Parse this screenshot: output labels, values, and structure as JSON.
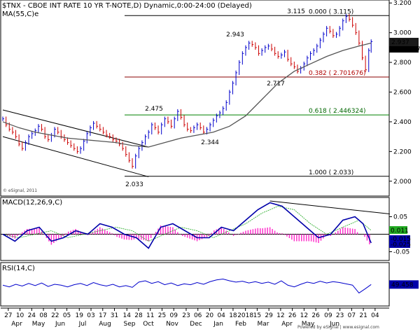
{
  "chart_data": [
    {
      "type": "line",
      "panel": "price",
      "title": "$TNX - CBOE INT RATE 10 YR T-NOTE,D) Dynamic,0:00-24:00 (Delayed)",
      "indicator_label": "MA(55,C)e",
      "watermark": "© eSignal, 2011",
      "ylim": [
        1.9,
        3.22
      ],
      "yticks": [
        2.0,
        2.2,
        2.4,
        2.6,
        2.8,
        3.0,
        3.2
      ],
      "ytick_labels": [
        "2.000",
        "2.200",
        "2.400",
        "2.600",
        "2.800",
        "3.000",
        "3.200"
      ],
      "current_value": "2.937",
      "current_value_behind": "2.906877",
      "series": [
        {
          "name": "price",
          "x": [
            0,
            4,
            8,
            12,
            16,
            20,
            24,
            28,
            32,
            36,
            40,
            44,
            48,
            52,
            56,
            60,
            64,
            68,
            72,
            76,
            80,
            84,
            88,
            92,
            96,
            100,
            104,
            108,
            112,
            116,
            120,
            124,
            128,
            132,
            136,
            140,
            144,
            148,
            152,
            156,
            160,
            164,
            168,
            172,
            176,
            180,
            184,
            188,
            192,
            196,
            200,
            204,
            208,
            212,
            216,
            220,
            224,
            228,
            232,
            236,
            240,
            244,
            248,
            252,
            256,
            260,
            264,
            268,
            272,
            276,
            280,
            284,
            288,
            292,
            296,
            300,
            304,
            308,
            312,
            316,
            320,
            324,
            328,
            332,
            336,
            340,
            344,
            348,
            352,
            356,
            360,
            364,
            368,
            372,
            376,
            380,
            384,
            388,
            392,
            396,
            400,
            404,
            408,
            412,
            416,
            420,
            424,
            428,
            432,
            436,
            440,
            444,
            448,
            452,
            455
          ],
          "values": [
            2.42,
            2.38,
            2.35,
            2.33,
            2.3,
            2.25,
            2.22,
            2.26,
            2.3,
            2.32,
            2.34,
            2.37,
            2.35,
            2.3,
            2.28,
            2.31,
            2.35,
            2.33,
            2.3,
            2.28,
            2.26,
            2.24,
            2.22,
            2.2,
            2.22,
            2.27,
            2.32,
            2.36,
            2.39,
            2.37,
            2.35,
            2.33,
            2.31,
            2.3,
            2.28,
            2.27,
            2.25,
            2.22,
            2.18,
            2.14,
            2.1,
            2.17,
            2.22,
            2.26,
            2.3,
            2.33,
            2.38,
            2.36,
            2.33,
            2.38,
            2.42,
            2.4,
            2.37,
            2.42,
            2.47,
            2.43,
            2.38,
            2.35,
            2.34,
            2.36,
            2.38,
            2.36,
            2.33,
            2.35,
            2.38,
            2.41,
            2.44,
            2.46,
            2.49,
            2.53,
            2.6,
            2.66,
            2.73,
            2.8,
            2.86,
            2.9,
            2.93,
            2.92,
            2.9,
            2.86,
            2.88,
            2.9,
            2.91,
            2.89,
            2.86,
            2.84,
            2.85,
            2.87,
            2.82,
            2.79,
            2.77,
            2.74,
            2.76,
            2.79,
            2.83,
            2.86,
            2.88,
            2.91,
            2.95,
            2.99,
            3.03,
            3.01,
            2.98,
            2.99,
            3.03,
            3.08,
            3.11,
            3.09,
            3.05,
            3.0,
            2.93,
            2.83,
            2.75,
            2.88,
            2.94
          ]
        },
        {
          "name": "MA(55,C)e",
          "x": [
            0,
            20,
            40,
            60,
            80,
            100,
            120,
            140,
            160,
            180,
            200,
            220,
            240,
            260,
            280,
            300,
            320,
            340,
            360,
            380,
            400,
            420,
            440,
            455
          ],
          "values": [
            2.4,
            2.36,
            2.33,
            2.31,
            2.29,
            2.28,
            2.27,
            2.26,
            2.24,
            2.23,
            2.26,
            2.29,
            2.31,
            2.33,
            2.37,
            2.44,
            2.55,
            2.66,
            2.74,
            2.79,
            2.84,
            2.88,
            2.91,
            2.93
          ]
        }
      ],
      "annotations": [
        "3.115",
        "2.943",
        "2.717",
        "2.475",
        "2.344",
        "2.033"
      ],
      "fib_levels": [
        {
          "label": "0.000 ( 3.115)",
          "value": 3.115
        },
        {
          "label": "0.382 ( 2.701676)",
          "value": 2.701676
        },
        {
          "label": "0.618 ( 2.446324)",
          "value": 2.446324
        },
        {
          "label": "1.000 ( 2.033)",
          "value": 2.033
        }
      ]
    },
    {
      "type": "line",
      "panel": "macd",
      "title": "MACD(12,26,9,C)",
      "ylim": [
        -0.075,
        0.105
      ],
      "ytick_labels": [
        "0.05",
        "-0.05"
      ],
      "current_values": [
        "0.011",
        "-0.015",
        "-0.025"
      ],
      "series": [
        {
          "name": "macd",
          "x": [
            0,
            15,
            30,
            45,
            60,
            75,
            90,
            105,
            120,
            135,
            150,
            165,
            180,
            195,
            210,
            225,
            240,
            255,
            270,
            285,
            300,
            315,
            330,
            345,
            360,
            375,
            390,
            405,
            420,
            435,
            445,
            455
          ],
          "values": [
            0.0,
            -0.02,
            0.01,
            0.02,
            -0.02,
            -0.01,
            0.01,
            0.0,
            0.03,
            0.02,
            0.0,
            -0.01,
            -0.04,
            0.02,
            0.03,
            0.01,
            -0.01,
            -0.01,
            0.02,
            0.01,
            0.04,
            0.07,
            0.09,
            0.08,
            0.05,
            0.02,
            -0.01,
            0.0,
            0.04,
            0.05,
            0.03,
            -0.025
          ]
        },
        {
          "name": "signal",
          "x": [
            0,
            20,
            40,
            60,
            80,
            100,
            120,
            140,
            160,
            180,
            200,
            220,
            240,
            260,
            280,
            300,
            320,
            340,
            360,
            380,
            400,
            420,
            440,
            455
          ],
          "values": [
            0.0,
            -0.01,
            0.0,
            0.01,
            -0.01,
            0.0,
            0.01,
            0.02,
            0.01,
            -0.02,
            0.0,
            0.02,
            0.01,
            -0.01,
            0.01,
            0.03,
            0.06,
            0.08,
            0.07,
            0.03,
            0.0,
            0.02,
            0.04,
            0.011
          ]
        }
      ]
    },
    {
      "type": "line",
      "panel": "rsi",
      "title": "RSI(14,C)",
      "ylim": [
        0,
        100
      ],
      "current_value": "49.458",
      "series": [
        {
          "name": "rsi",
          "x": [
            0,
            8,
            16,
            24,
            32,
            40,
            48,
            56,
            64,
            72,
            80,
            88,
            96,
            104,
            112,
            120,
            128,
            136,
            144,
            152,
            160,
            168,
            176,
            184,
            192,
            200,
            208,
            216,
            224,
            232,
            240,
            248,
            256,
            264,
            272,
            280,
            288,
            296,
            304,
            312,
            320,
            328,
            336,
            344,
            352,
            360,
            368,
            376,
            384,
            392,
            400,
            408,
            416,
            424,
            432,
            440,
            448,
            455
          ],
          "values": [
            48,
            44,
            50,
            46,
            52,
            47,
            53,
            45,
            50,
            48,
            44,
            49,
            52,
            47,
            54,
            49,
            46,
            50,
            44,
            47,
            43,
            55,
            58,
            52,
            56,
            49,
            53,
            47,
            51,
            49,
            54,
            50,
            56,
            60,
            62,
            58,
            55,
            57,
            53,
            56,
            52,
            55,
            50,
            58,
            48,
            44,
            50,
            55,
            52,
            57,
            53,
            56,
            54,
            51,
            48,
            30,
            40,
            49.458
          ]
        }
      ]
    },
    {
      "type": "table",
      "panel": "time_axis",
      "day_labels": [
        "27",
        "10",
        "24",
        "08",
        "22",
        "05",
        "19",
        "03",
        "17",
        "31",
        "14",
        "28",
        "11",
        "25",
        "09",
        "23",
        "06",
        "20",
        "04",
        "18",
        "2018",
        "15",
        "29",
        "12",
        "26",
        "12",
        "26",
        "09",
        "23",
        "07",
        "21",
        "04"
      ],
      "month_labels": [
        "Apr",
        "May",
        "Jun",
        "Jul",
        "Aug",
        "Sep",
        "Oct",
        "Nov",
        "Dec",
        "Jan",
        "Feb",
        "Mar",
        "Apr",
        "May",
        "Jun"
      ],
      "footer": "Powered by eSignal | www.esignal.com"
    }
  ]
}
